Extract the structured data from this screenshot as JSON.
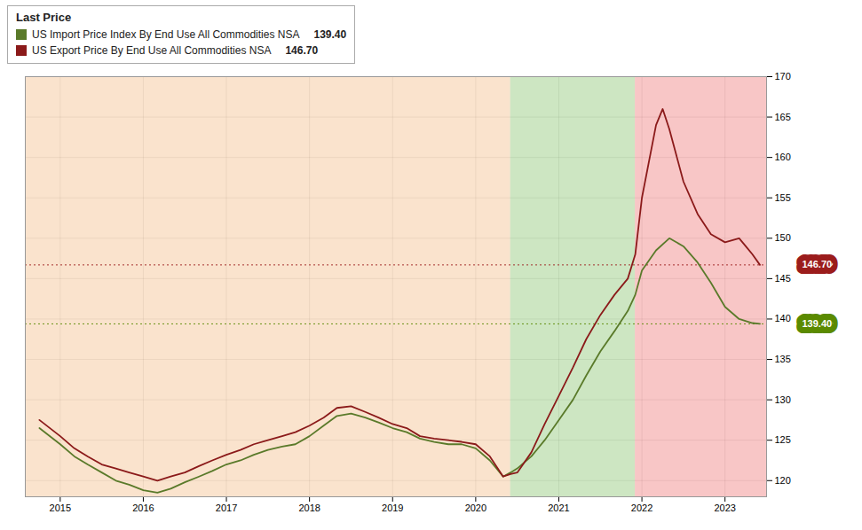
{
  "chart_data": {
    "type": "line",
    "title": "Last Price",
    "xlim": [
      2014.58,
      2023.5
    ],
    "xticks": [
      2015,
      2016,
      2017,
      2018,
      2019,
      2020,
      2021,
      2022,
      2023
    ],
    "ylim": [
      118,
      170
    ],
    "yticks": [
      120,
      125,
      130,
      135,
      140,
      145,
      150,
      155,
      160,
      165,
      170
    ],
    "grid": true,
    "legend": "upper left",
    "regions": [
      {
        "start": 2014.58,
        "end": 2020.42,
        "color": "#f5c090"
      },
      {
        "start": 2020.42,
        "end": 2021.92,
        "color": "#90c878"
      },
      {
        "start": 2021.92,
        "end": 2023.5,
        "color": "#f08080"
      }
    ],
    "series": [
      {
        "name": "US Import Price Index By End Use All Commodities NSA",
        "color": "#5a7a2a",
        "x": [
          2014.75,
          2015.0,
          2015.17,
          2015.33,
          2015.5,
          2015.67,
          2015.83,
          2016.0,
          2016.17,
          2016.33,
          2016.5,
          2016.67,
          2016.83,
          2017.0,
          2017.17,
          2017.33,
          2017.5,
          2017.67,
          2017.83,
          2018.0,
          2018.17,
          2018.33,
          2018.5,
          2018.67,
          2018.83,
          2019.0,
          2019.17,
          2019.33,
          2019.5,
          2019.67,
          2019.83,
          2020.0,
          2020.17,
          2020.33,
          2020.42,
          2020.5,
          2020.67,
          2020.83,
          2021.0,
          2021.17,
          2021.33,
          2021.5,
          2021.67,
          2021.83,
          2021.92,
          2022.0,
          2022.17,
          2022.33,
          2022.5,
          2022.67,
          2022.83,
          2023.0,
          2023.17,
          2023.33,
          2023.42
        ],
        "values": [
          126.5,
          124.5,
          123.0,
          122.0,
          121.0,
          120.0,
          119.5,
          118.8,
          118.5,
          119.0,
          119.8,
          120.5,
          121.2,
          122.0,
          122.5,
          123.2,
          123.8,
          124.2,
          124.5,
          125.5,
          126.8,
          128.0,
          128.3,
          127.8,
          127.2,
          126.5,
          126.0,
          125.2,
          124.8,
          124.5,
          124.5,
          124.0,
          122.5,
          120.5,
          121.0,
          121.5,
          123.0,
          125.0,
          127.5,
          130.0,
          133.0,
          136.0,
          138.5,
          141.0,
          143.0,
          146.0,
          148.5,
          150.0,
          149.0,
          147.0,
          144.5,
          141.5,
          140.0,
          139.5,
          139.4
        ],
        "last_value": 139.4,
        "last_label": "139.40",
        "tag_color": "#5a8a00"
      },
      {
        "name": "US Export Price By End Use All Commodities NSA",
        "color": "#8b1a1a",
        "x": [
          2014.75,
          2015.0,
          2015.17,
          2015.33,
          2015.5,
          2015.67,
          2015.83,
          2016.0,
          2016.17,
          2016.33,
          2016.5,
          2016.67,
          2016.83,
          2017.0,
          2017.17,
          2017.33,
          2017.5,
          2017.67,
          2017.83,
          2018.0,
          2018.17,
          2018.33,
          2018.5,
          2018.67,
          2018.83,
          2019.0,
          2019.17,
          2019.33,
          2019.5,
          2019.67,
          2019.83,
          2020.0,
          2020.17,
          2020.33,
          2020.42,
          2020.5,
          2020.67,
          2020.83,
          2021.0,
          2021.17,
          2021.33,
          2021.5,
          2021.67,
          2021.83,
          2021.92,
          2022.0,
          2022.17,
          2022.25,
          2022.33,
          2022.5,
          2022.67,
          2022.83,
          2023.0,
          2023.17,
          2023.25,
          2023.33,
          2023.42
        ],
        "values": [
          127.5,
          125.5,
          124.0,
          123.0,
          122.0,
          121.5,
          121.0,
          120.5,
          120.0,
          120.5,
          121.0,
          121.8,
          122.5,
          123.2,
          123.8,
          124.5,
          125.0,
          125.5,
          126.0,
          126.8,
          127.8,
          129.0,
          129.2,
          128.5,
          127.8,
          127.0,
          126.5,
          125.5,
          125.2,
          125.0,
          124.8,
          124.5,
          123.0,
          120.5,
          120.8,
          121.0,
          123.5,
          127.0,
          130.5,
          134.0,
          137.5,
          140.5,
          143.0,
          145.0,
          148.0,
          155.0,
          164.0,
          166.0,
          163.5,
          157.0,
          153.0,
          150.5,
          149.5,
          150.0,
          149.0,
          148.0,
          146.7
        ],
        "last_value": 146.7,
        "last_label": "146.70",
        "tag_color": "#9b1c1c"
      }
    ]
  }
}
